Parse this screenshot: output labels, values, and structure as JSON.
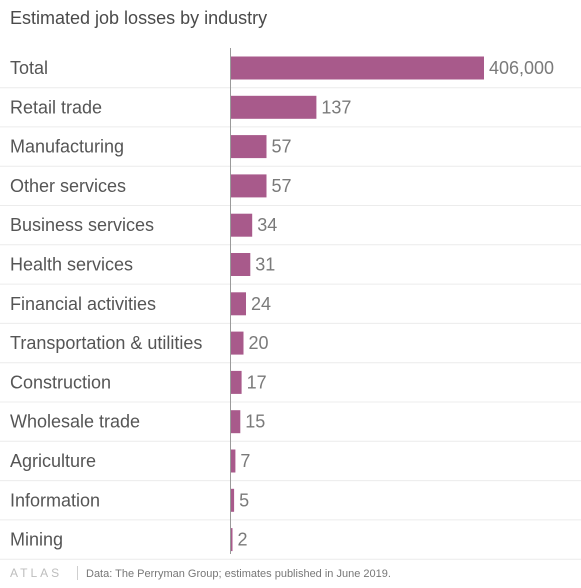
{
  "chart_data": {
    "type": "bar",
    "orientation": "horizontal",
    "title": "Estimated job losses by industry",
    "categories": [
      "Total",
      "Retail trade",
      "Manufacturing",
      "Other services",
      "Business services",
      "Health services",
      "Financial activities",
      "Transportation & utilities",
      "Construction",
      "Wholesale trade",
      "Agriculture",
      "Information",
      "Mining"
    ],
    "values": [
      406000,
      137,
      57,
      57,
      34,
      31,
      24,
      20,
      17,
      15,
      7,
      5,
      2
    ],
    "value_labels": [
      "406,000",
      "137",
      "57",
      "57",
      "34",
      "31",
      "24",
      "20",
      "17",
      "15",
      "7",
      "5",
      "2"
    ],
    "bar_color": "#a85a8b",
    "grid": true
  },
  "footer": {
    "brand": "ATLAS",
    "source": "Data: The Perryman Group; estimates published in June 2019."
  }
}
